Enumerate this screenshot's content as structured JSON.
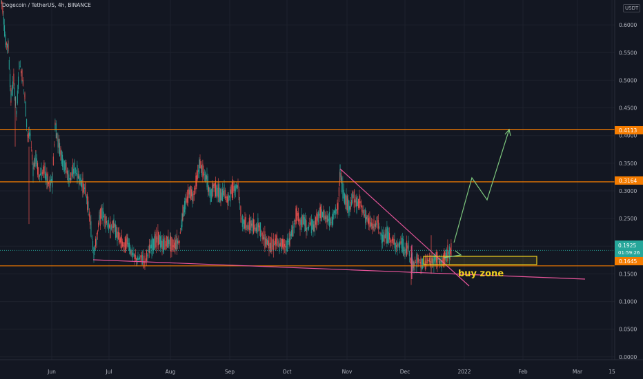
{
  "header": {
    "title": "Dogecoin / TetherUS, 4h, BINANCE",
    "currency": "USDT"
  },
  "chart_data": {
    "type": "candlestick",
    "symbol": "Dogecoin / TetherUS",
    "timeframe": "4h",
    "exchange": "BINANCE",
    "x_ticks": [
      "Jun",
      "Jul",
      "Aug",
      "Sep",
      "Oct",
      "Nov",
      "Dec",
      "2022",
      "Feb",
      "Mar",
      "15"
    ],
    "y_ticks": [
      "0.6000",
      "0.5500",
      "0.5000",
      "0.4500",
      "0.4000",
      "0.3500",
      "0.3000",
      "0.2500",
      "0.2000",
      "0.1500",
      "0.1000",
      "0.0500",
      "0.0000"
    ],
    "y_tick_values": [
      0.6,
      0.55,
      0.5,
      0.45,
      0.4,
      0.35,
      0.3,
      0.25,
      0.2,
      0.15,
      0.1,
      0.05,
      0.0
    ],
    "ylim": [
      -0.04,
      0.645
    ],
    "price_series": [
      [
        0,
        0.66
      ],
      [
        4,
        0.63
      ],
      [
        8,
        0.57
      ],
      [
        12,
        0.56
      ],
      [
        16,
        0.47
      ],
      [
        20,
        0.5
      ],
      [
        24,
        0.44
      ],
      [
        28,
        0.53
      ],
      [
        32,
        0.51
      ],
      [
        36,
        0.47
      ],
      [
        40,
        0.4
      ],
      [
        44,
        0.4
      ],
      [
        48,
        0.34
      ],
      [
        52,
        0.36
      ],
      [
        56,
        0.33
      ],
      [
        60,
        0.33
      ],
      [
        64,
        0.34
      ],
      [
        68,
        0.32
      ],
      [
        72,
        0.31
      ],
      [
        76,
        0.32
      ],
      [
        80,
        0.42
      ],
      [
        84,
        0.39
      ],
      [
        88,
        0.37
      ],
      [
        92,
        0.35
      ],
      [
        96,
        0.34
      ],
      [
        100,
        0.32
      ],
      [
        104,
        0.33
      ],
      [
        108,
        0.34
      ],
      [
        112,
        0.33
      ],
      [
        116,
        0.32
      ],
      [
        120,
        0.31
      ],
      [
        124,
        0.3
      ],
      [
        128,
        0.27
      ],
      [
        132,
        0.23
      ],
      [
        136,
        0.19
      ],
      [
        140,
        0.21
      ],
      [
        144,
        0.25
      ],
      [
        148,
        0.26
      ],
      [
        152,
        0.25
      ],
      [
        156,
        0.24
      ],
      [
        160,
        0.23
      ],
      [
        165,
        0.24
      ],
      [
        170,
        0.22
      ],
      [
        175,
        0.21
      ],
      [
        180,
        0.2
      ],
      [
        185,
        0.21
      ],
      [
        190,
        0.19
      ],
      [
        195,
        0.18
      ],
      [
        200,
        0.175
      ],
      [
        205,
        0.18
      ],
      [
        210,
        0.172
      ],
      [
        215,
        0.19
      ],
      [
        220,
        0.2
      ],
      [
        225,
        0.21
      ],
      [
        230,
        0.215
      ],
      [
        235,
        0.2
      ],
      [
        240,
        0.205
      ],
      [
        245,
        0.21
      ],
      [
        250,
        0.2
      ],
      [
        255,
        0.205
      ],
      [
        260,
        0.21
      ],
      [
        265,
        0.26
      ],
      [
        270,
        0.28
      ],
      [
        275,
        0.3
      ],
      [
        280,
        0.29
      ],
      [
        285,
        0.32
      ],
      [
        290,
        0.35
      ],
      [
        295,
        0.33
      ],
      [
        300,
        0.32
      ],
      [
        305,
        0.29
      ],
      [
        310,
        0.31
      ],
      [
        315,
        0.3
      ],
      [
        320,
        0.29
      ],
      [
        325,
        0.3
      ],
      [
        330,
        0.28
      ],
      [
        335,
        0.3
      ],
      [
        340,
        0.305
      ],
      [
        345,
        0.31
      ],
      [
        350,
        0.25
      ],
      [
        355,
        0.24
      ],
      [
        360,
        0.235
      ],
      [
        365,
        0.24
      ],
      [
        370,
        0.23
      ],
      [
        375,
        0.24
      ],
      [
        380,
        0.22
      ],
      [
        385,
        0.21
      ],
      [
        390,
        0.205
      ],
      [
        395,
        0.2
      ],
      [
        400,
        0.21
      ],
      [
        405,
        0.2
      ],
      [
        410,
        0.205
      ],
      [
        415,
        0.2
      ],
      [
        420,
        0.215
      ],
      [
        425,
        0.23
      ],
      [
        430,
        0.26
      ],
      [
        435,
        0.24
      ],
      [
        440,
        0.25
      ],
      [
        445,
        0.23
      ],
      [
        450,
        0.24
      ],
      [
        455,
        0.235
      ],
      [
        460,
        0.25
      ],
      [
        465,
        0.26
      ],
      [
        470,
        0.255
      ],
      [
        475,
        0.25
      ],
      [
        480,
        0.245
      ],
      [
        485,
        0.26
      ],
      [
        490,
        0.27
      ],
      [
        493,
        0.335
      ],
      [
        497,
        0.3
      ],
      [
        502,
        0.28
      ],
      [
        507,
        0.27
      ],
      [
        512,
        0.29
      ],
      [
        517,
        0.275
      ],
      [
        522,
        0.28
      ],
      [
        527,
        0.26
      ],
      [
        532,
        0.25
      ],
      [
        537,
        0.24
      ],
      [
        542,
        0.235
      ],
      [
        547,
        0.245
      ],
      [
        552,
        0.22
      ],
      [
        557,
        0.215
      ],
      [
        562,
        0.22
      ],
      [
        567,
        0.21
      ],
      [
        572,
        0.205
      ],
      [
        577,
        0.2
      ],
      [
        582,
        0.205
      ],
      [
        587,
        0.19
      ],
      [
        592,
        0.2
      ],
      [
        595,
        0.17
      ],
      [
        600,
        0.165
      ],
      [
        605,
        0.175
      ],
      [
        610,
        0.17
      ],
      [
        615,
        0.165
      ],
      [
        620,
        0.175
      ],
      [
        625,
        0.17
      ],
      [
        630,
        0.18
      ],
      [
        635,
        0.175
      ],
      [
        640,
        0.17
      ],
      [
        645,
        0.18
      ],
      [
        650,
        0.19
      ],
      [
        655,
        0.195
      ]
    ],
    "horizontal_levels": [
      {
        "label": "0.4113",
        "value": 0.4113,
        "color": "#f57c00"
      },
      {
        "label": "0.3164",
        "value": 0.3164,
        "color": "#f57c00"
      },
      {
        "label": "0.1645",
        "value": 0.1645,
        "color": "#f57c00"
      }
    ],
    "current_price": {
      "label": "0.1925",
      "countdown": "01:59:26",
      "value": 0.1925,
      "color": "#26a69a"
    },
    "annotations": {
      "buy_zone_text": "buy zone"
    },
    "colors": {
      "up": "#26a69a",
      "down": "#ef5350",
      "trendline": "#e8559a",
      "projection": "#7ec87e",
      "zone": "#f0d020",
      "level": "#f57c00"
    }
  }
}
